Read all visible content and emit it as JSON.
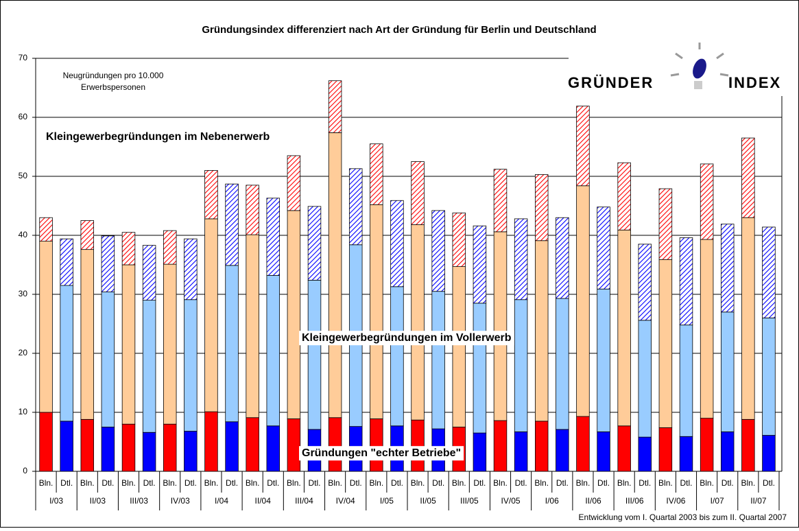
{
  "chart_data": {
    "type": "stacked-bar",
    "title": "Gründungsindex differenziert nach Art der Gründung für Berlin und Deutschland",
    "unit_note": [
      "Neugründungen pro 10.000",
      "Erwerbspersonen"
    ],
    "footnote": "Entwicklung vom I. Quartal 2003 bis zum  II. Quartal 2007",
    "logo": [
      "GRÜNDER",
      "INDEX"
    ],
    "categories": [
      "Bln.",
      "Dtl.",
      "Bln.",
      "Dtl.",
      "Bln.",
      "Dtl.",
      "Bln.",
      "Dtl.",
      "Bln.",
      "Dtl.",
      "Bln.",
      "Dtl.",
      "Bln.",
      "Dtl.",
      "Bln.",
      "Dtl.",
      "Bln.",
      "Dtl.",
      "Bln.",
      "Dtl.",
      "Bln.",
      "Dtl.",
      "Bln.",
      "Dtl.",
      "Bln.",
      "Dtl.",
      "Bln.",
      "Dtl.",
      "Bln.",
      "Dtl.",
      "Bln.",
      "Dtl.",
      "Bln.",
      "Dtl.",
      "Bln.",
      "Dtl."
    ],
    "groups": [
      "I/03",
      "II/03",
      "III/03",
      "IV/03",
      "I/04",
      "II/04",
      "III/04",
      "IV/04",
      "I/05",
      "II/05",
      "III/05",
      "IV/05",
      "I/06",
      "II/06",
      "III/06",
      "IV/06",
      "I/07",
      "II/07"
    ],
    "series": [
      {
        "name": "Gründungen \"echter Betriebe\"",
        "colors": {
          "Bln.": "#ff0000",
          "Dtl.": "#0000ff"
        },
        "pattern": "solid",
        "values": [
          10.0,
          8.5,
          8.8,
          7.5,
          8.0,
          6.6,
          8.0,
          6.8,
          10.1,
          8.4,
          9.1,
          7.7,
          8.9,
          7.1,
          9.1,
          7.6,
          8.9,
          7.7,
          8.7,
          7.2,
          7.5,
          6.5,
          8.6,
          6.7,
          8.5,
          7.1,
          9.3,
          6.7,
          7.7,
          5.8,
          7.4,
          5.9,
          9.0,
          6.7,
          8.8,
          6.1
        ]
      },
      {
        "name": "Kleingewerbegründungen im Vollerwerb",
        "colors": {
          "Bln.": "#ffcc99",
          "Dtl.": "#99ccff"
        },
        "pattern": "solid",
        "values": [
          29.0,
          23.0,
          28.8,
          22.9,
          27.0,
          22.4,
          27.1,
          22.3,
          32.7,
          26.5,
          31.0,
          25.5,
          35.3,
          25.3,
          48.3,
          30.8,
          36.3,
          23.6,
          33.1,
          23.3,
          27.2,
          22.0,
          32.0,
          22.4,
          30.6,
          22.2,
          39.1,
          24.2,
          33.2,
          19.8,
          28.5,
          18.9,
          30.3,
          20.3,
          34.2,
          19.9
        ]
      },
      {
        "name": "Kleingewerbegründungen im Nebenerwerb",
        "colors": {
          "Bln.": "#ff0000",
          "Dtl.": "#0000ff"
        },
        "pattern": "hatch",
        "values": [
          4.0,
          7.9,
          4.9,
          9.5,
          5.5,
          9.3,
          5.7,
          10.3,
          8.2,
          13.8,
          8.4,
          13.1,
          9.3,
          12.5,
          8.8,
          12.9,
          10.3,
          14.6,
          10.7,
          13.7,
          9.1,
          13.1,
          10.6,
          13.7,
          11.2,
          13.7,
          13.5,
          13.9,
          11.4,
          12.9,
          12.0,
          14.8,
          12.8,
          14.9,
          13.5,
          15.4
        ]
      }
    ],
    "ylim": [
      0,
      70
    ],
    "yticks": [
      0,
      10,
      20,
      30,
      40,
      50,
      60,
      70
    ],
    "grid": true
  }
}
